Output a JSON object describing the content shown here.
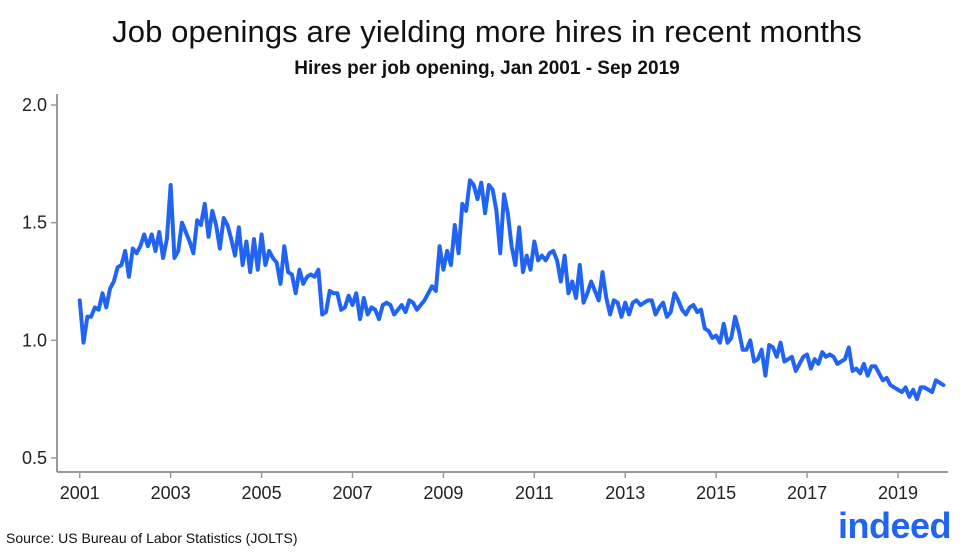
{
  "header": {
    "title": "Job openings are yielding more hires in recent months",
    "subtitle": "Hires per job opening, Jan 2001 - Sep 2019"
  },
  "footer": {
    "source": "Source: US Bureau of Labor Statistics (JOLTS)",
    "brand": "indeed"
  },
  "colors": {
    "line": "#2164f3",
    "axis": "#9a9a9a",
    "brand": "#2164f3"
  },
  "chart_data": {
    "type": "line",
    "title": "Job openings are yielding more hires in recent months",
    "subtitle": "Hires per job opening, Jan 2001 - Sep 2019",
    "xlabel": "",
    "ylabel": "",
    "ylim": [
      0.5,
      2.0
    ],
    "xlim": [
      2000.5,
      2020.1
    ],
    "y_ticks": [
      "0.5",
      "1.0",
      "1.5",
      "2.0"
    ],
    "y_tick_values": [
      0.5,
      1.0,
      1.5,
      2.0
    ],
    "x_ticks": [
      "2001",
      "2003",
      "2005",
      "2007",
      "2009",
      "2011",
      "2013",
      "2015",
      "2017",
      "2019"
    ],
    "x_tick_values": [
      2001,
      2003,
      2005,
      2007,
      2009,
      2011,
      2013,
      2015,
      2017,
      2019
    ],
    "grid": false,
    "series": [
      {
        "start": "2001-01",
        "end": "2019-09",
        "frequency": "monthly",
        "values": [
          1.17,
          0.99,
          1.1,
          1.1,
          1.14,
          1.13,
          1.2,
          1.14,
          1.22,
          1.25,
          1.31,
          1.32,
          1.38,
          1.27,
          1.39,
          1.37,
          1.4,
          1.45,
          1.4,
          1.45,
          1.38,
          1.46,
          1.35,
          1.43,
          1.66,
          1.35,
          1.38,
          1.5,
          1.46,
          1.42,
          1.37,
          1.51,
          1.49,
          1.58,
          1.44,
          1.55,
          1.49,
          1.39,
          1.52,
          1.49,
          1.43,
          1.36,
          1.48,
          1.32,
          1.42,
          1.29,
          1.43,
          1.3,
          1.45,
          1.32,
          1.38,
          1.35,
          1.33,
          1.24,
          1.4,
          1.29,
          1.28,
          1.2,
          1.3,
          1.24,
          1.27,
          1.28,
          1.27,
          1.3,
          1.11,
          1.12,
          1.21,
          1.2,
          1.2,
          1.13,
          1.14,
          1.19,
          1.15,
          1.2,
          1.09,
          1.18,
          1.11,
          1.14,
          1.13,
          1.09,
          1.15,
          1.16,
          1.15,
          1.11,
          1.13,
          1.15,
          1.12,
          1.17,
          1.16,
          1.13,
          1.15,
          1.17,
          1.2,
          1.23,
          1.21,
          1.4,
          1.3,
          1.38,
          1.32,
          1.49,
          1.37,
          1.58,
          1.55,
          1.68,
          1.66,
          1.6,
          1.67,
          1.54,
          1.66,
          1.64,
          1.55,
          1.37,
          1.62,
          1.54,
          1.4,
          1.32,
          1.48,
          1.29,
          1.36,
          1.3,
          1.42,
          1.34,
          1.36,
          1.34,
          1.37,
          1.38,
          1.34,
          1.25,
          1.36,
          1.2,
          1.25,
          1.18,
          1.32,
          1.16,
          1.2,
          1.25,
          1.21,
          1.17,
          1.29,
          1.18,
          1.11,
          1.17,
          1.16,
          1.1,
          1.16,
          1.11,
          1.16,
          1.17,
          1.15,
          1.16,
          1.17,
          1.17,
          1.11,
          1.14,
          1.16,
          1.1,
          1.12,
          1.2,
          1.17,
          1.13,
          1.11,
          1.14,
          1.15,
          1.12,
          1.13,
          1.05,
          1.04,
          1.01,
          1.02,
          0.99,
          1.07,
          0.99,
          1.01,
          1.1,
          1.04,
          0.96,
          0.96,
          1.0,
          0.91,
          0.92,
          0.96,
          0.85,
          0.98,
          0.97,
          0.93,
          0.99,
          0.91,
          0.92,
          0.93,
          0.87,
          0.9,
          0.93,
          0.94,
          0.88,
          0.92,
          0.9,
          0.95,
          0.93,
          0.94,
          0.93,
          0.9,
          0.91,
          0.92,
          0.97,
          0.87,
          0.88,
          0.86,
          0.9,
          0.85,
          0.89,
          0.89,
          0.86,
          0.83,
          0.84,
          0.81,
          0.8,
          0.79,
          0.78,
          0.8,
          0.76,
          0.79,
          0.75,
          0.8,
          0.8,
          0.79,
          0.78,
          0.83,
          0.82,
          0.81
        ]
      }
    ]
  }
}
